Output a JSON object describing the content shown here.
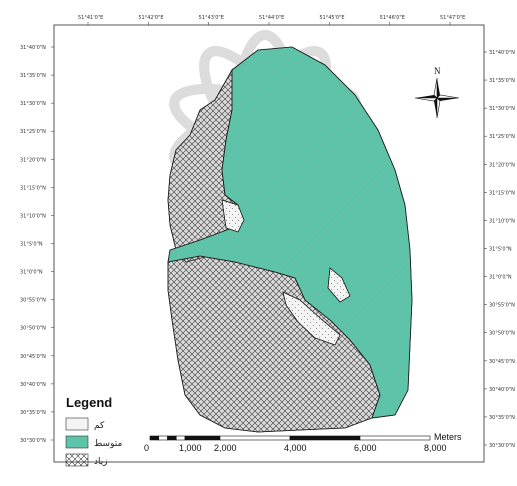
{
  "colors": {
    "high": "#a3ddd0",
    "medium": "#5cc4a9",
    "low": "#d9d9d9",
    "outline": "#222222",
    "frame": "#555555",
    "watermark": "#9c9c9c"
  },
  "north": {
    "label": "N"
  },
  "top_ticks": [
    "51°41'0\"E",
    "51°42'0\"E",
    "51°43'0\"E",
    "51°44'0\"E",
    "51°45'0\"E",
    "51°46'0\"E",
    "51°47'0\"E"
  ],
  "left_ticks": [
    "31°40'0\"N",
    "31°35'0\"N",
    "31°30'0\"N",
    "31°25'0\"N",
    "31°20'0\"N",
    "31°15'0\"N",
    "31°10'0\"N",
    "31°5'0\"N",
    "31°0'0\"N",
    "30°55'0\"N",
    "30°50'0\"N",
    "30°45'0\"N",
    "30°40'0\"N",
    "30°35'0\"N",
    "30°30'0\"N"
  ],
  "right_ticks": [
    "31°40'0\"N",
    "31°35'0\"N",
    "31°30'0\"N",
    "31°25'0\"N",
    "31°20'0\"N",
    "31°15'0\"N",
    "31°10'0\"N",
    "31°5'0\"N",
    "31°0'0\"N",
    "30°55'0\"N",
    "30°50'0\"N",
    "30°45'0\"N",
    "30°40'0\"N",
    "30°35'0\"N",
    "30°30'0\"N"
  ],
  "legend": {
    "title": "Legend",
    "items": [
      {
        "label": "کم",
        "swatch": "high"
      },
      {
        "label": "متوسط",
        "swatch": "medium"
      },
      {
        "label": "زیاد",
        "swatch": "low"
      }
    ]
  },
  "scale_bar": {
    "unit": "Meters",
    "labels": [
      "0",
      "1,000",
      "2,000",
      "4,000",
      "6,000",
      "8,000"
    ],
    "stops": [
      0,
      1000,
      2000,
      4000,
      6000,
      8000
    ]
  }
}
